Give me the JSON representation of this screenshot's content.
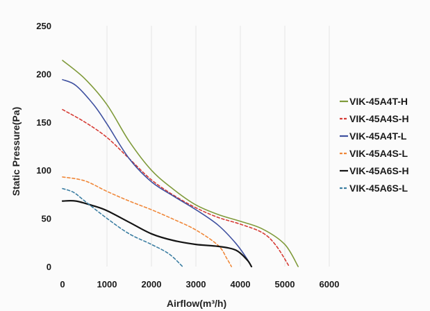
{
  "chart_data": {
    "type": "line",
    "title": "",
    "xlabel": "Airflow(m³/h)",
    "ylabel": "Static Pressure(Pa)",
    "xlim": [
      0,
      6000
    ],
    "ylim": [
      0,
      250
    ],
    "xticks": [
      0,
      1000,
      2000,
      3000,
      4000,
      5000,
      6000
    ],
    "yticks": [
      0,
      50,
      100,
      150,
      200,
      250
    ],
    "xtick_labels": [
      "0",
      "1000",
      "2000",
      "3000",
      "4000",
      "5000",
      "6000"
    ],
    "ytick_labels": [
      "0",
      "50",
      "100",
      "150",
      "200",
      "250"
    ],
    "grid": "vertical",
    "legend_position": "right",
    "series": [
      {
        "name": "VIK-45A4T-H",
        "color": "#7f9a3a",
        "dash": "solid",
        "points": [
          [
            0,
            214
          ],
          [
            500,
            195
          ],
          [
            1000,
            168
          ],
          [
            1500,
            130
          ],
          [
            2000,
            100
          ],
          [
            2500,
            80
          ],
          [
            3000,
            64
          ],
          [
            3500,
            54
          ],
          [
            4000,
            47
          ],
          [
            4500,
            39
          ],
          [
            5000,
            23
          ],
          [
            5300,
            0
          ]
        ]
      },
      {
        "name": "VIK-45A4S-H",
        "color": "#d63b34",
        "dash": "dashed",
        "points": [
          [
            0,
            163
          ],
          [
            500,
            150
          ],
          [
            1000,
            134
          ],
          [
            1500,
            112
          ],
          [
            2000,
            90
          ],
          [
            2500,
            74
          ],
          [
            3000,
            61
          ],
          [
            3500,
            51
          ],
          [
            4000,
            44
          ],
          [
            4500,
            35
          ],
          [
            4800,
            22
          ],
          [
            5100,
            0
          ]
        ]
      },
      {
        "name": "VIK-45A4T-L",
        "color": "#3f51a0",
        "dash": "solid",
        "points": [
          [
            0,
            194
          ],
          [
            300,
            188
          ],
          [
            700,
            168
          ],
          [
            1000,
            148
          ],
          [
            1500,
            112
          ],
          [
            2000,
            88
          ],
          [
            2500,
            73
          ],
          [
            3000,
            59
          ],
          [
            3500,
            43
          ],
          [
            3900,
            24
          ],
          [
            4150,
            8
          ],
          [
            4250,
            0
          ]
        ]
      },
      {
        "name": "VIK-45A4S-L",
        "color": "#f0883a",
        "dash": "dashed",
        "points": [
          [
            0,
            93
          ],
          [
            500,
            89
          ],
          [
            1000,
            78
          ],
          [
            1500,
            68
          ],
          [
            2000,
            59
          ],
          [
            2500,
            49
          ],
          [
            3000,
            38
          ],
          [
            3500,
            22
          ],
          [
            3700,
            8
          ],
          [
            3800,
            0
          ]
        ]
      },
      {
        "name": "VIK-45A6S-H",
        "color": "#141414",
        "dash": "solid",
        "points": [
          [
            0,
            68
          ],
          [
            300,
            68
          ],
          [
            700,
            63
          ],
          [
            1000,
            58
          ],
          [
            1500,
            46
          ],
          [
            2000,
            34
          ],
          [
            2500,
            27
          ],
          [
            3000,
            23
          ],
          [
            3500,
            21
          ],
          [
            3900,
            17
          ],
          [
            4150,
            7
          ],
          [
            4250,
            0
          ]
        ]
      },
      {
        "name": "VIK-45A6S-L",
        "color": "#3d7fa3",
        "dash": "dashed",
        "points": [
          [
            0,
            81
          ],
          [
            250,
            77
          ],
          [
            500,
            68
          ],
          [
            1000,
            50
          ],
          [
            1500,
            34
          ],
          [
            2000,
            23
          ],
          [
            2400,
            13
          ],
          [
            2700,
            0
          ]
        ]
      }
    ]
  }
}
